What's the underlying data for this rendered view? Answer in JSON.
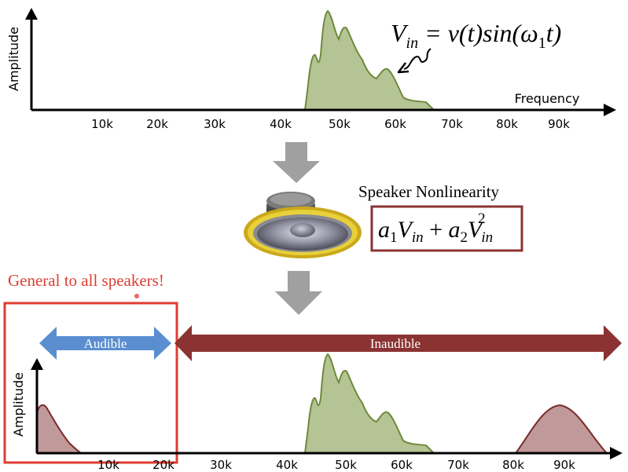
{
  "top_chart": {
    "ylabel": "Amplitude",
    "xlabel": "Frequency",
    "ticks": [
      "10k",
      "20k",
      "30k",
      "40k",
      "50k",
      "60k",
      "70k",
      "80k",
      "90k"
    ],
    "formula_lhs": "V",
    "formula_lhs_sub": "in",
    "formula_rhs_pre": " = v(t)sin(",
    "formula_omega": "ω",
    "formula_omega_sub": "1",
    "formula_rhs_post": "t)"
  },
  "speaker": {
    "title": "Speaker Nonlinearity",
    "a1": "a",
    "a1_sub": "1",
    "v1": "V",
    "v1_sub": "in",
    "plus": " + ",
    "a2": "a",
    "a2_sub": "2",
    "v2": "V",
    "v2_sub": "in",
    "v2_sup": "2"
  },
  "note": "General to all speakers!",
  "bands": {
    "audible": "Audible",
    "inaudible": "Inaudible"
  },
  "bottom_chart": {
    "ylabel": "Amplitude",
    "ticks": [
      "10k",
      "20k",
      "30k",
      "40k",
      "50k",
      "60k",
      "70k",
      "80k",
      "90k"
    ]
  },
  "colors": {
    "signal_fill": "#b5c494",
    "signal_stroke": "#6e8a3a",
    "harmonic_fill": "#c09a9a",
    "harmonic_stroke": "#7a2a2a",
    "audible_arrow": "#5a8ed1",
    "inaudible_arrow": "#8b3333",
    "highlight_box": "#e03c31",
    "note_text": "#e03c31",
    "formula_box": "#8b3333",
    "down_arrow": "#a0a0a0"
  }
}
